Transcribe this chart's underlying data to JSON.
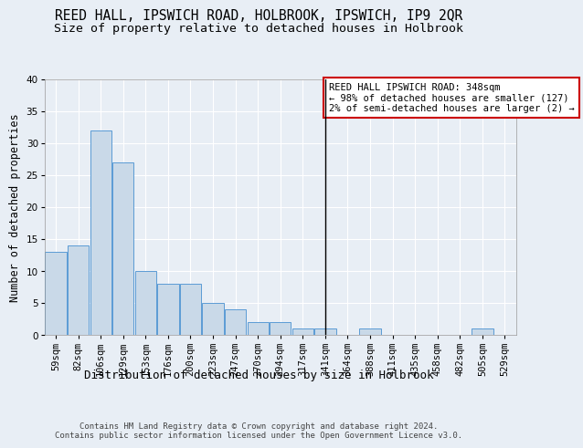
{
  "title1": "REED HALL, IPSWICH ROAD, HOLBROOK, IPSWICH, IP9 2QR",
  "title2": "Size of property relative to detached houses in Holbrook",
  "xlabel": "Distribution of detached houses by size in Holbrook",
  "ylabel": "Number of detached properties",
  "categories": [
    "59sqm",
    "82sqm",
    "106sqm",
    "129sqm",
    "153sqm",
    "176sqm",
    "200sqm",
    "223sqm",
    "247sqm",
    "270sqm",
    "294sqm",
    "317sqm",
    "341sqm",
    "364sqm",
    "388sqm",
    "411sqm",
    "435sqm",
    "458sqm",
    "482sqm",
    "505sqm",
    "529sqm"
  ],
  "values": [
    13,
    14,
    32,
    27,
    10,
    8,
    8,
    5,
    4,
    2,
    2,
    1,
    1,
    0,
    1,
    0,
    0,
    0,
    0,
    1,
    0
  ],
  "bar_color": "#c9d9e8",
  "bar_edge_color": "#5b9bd5",
  "vline_index": 12,
  "vline_color": "#000000",
  "annotation_text": "REED HALL IPSWICH ROAD: 348sqm\n← 98% of detached houses are smaller (127)\n2% of semi-detached houses are larger (2) →",
  "annotation_box_color": "#ffffff",
  "annotation_box_edge_color": "#cc0000",
  "bg_color": "#e8eef5",
  "plot_bg_color": "#e8eef5",
  "footer": "Contains HM Land Registry data © Crown copyright and database right 2024.\nContains public sector information licensed under the Open Government Licence v3.0.",
  "ylim": [
    0,
    40
  ],
  "yticks": [
    0,
    5,
    10,
    15,
    20,
    25,
    30,
    35,
    40
  ],
  "title1_fontsize": 10.5,
  "title2_fontsize": 9.5,
  "xlabel_fontsize": 9,
  "ylabel_fontsize": 8.5,
  "tick_fontsize": 7.5,
  "annotation_fontsize": 7.5,
  "footer_fontsize": 6.5
}
